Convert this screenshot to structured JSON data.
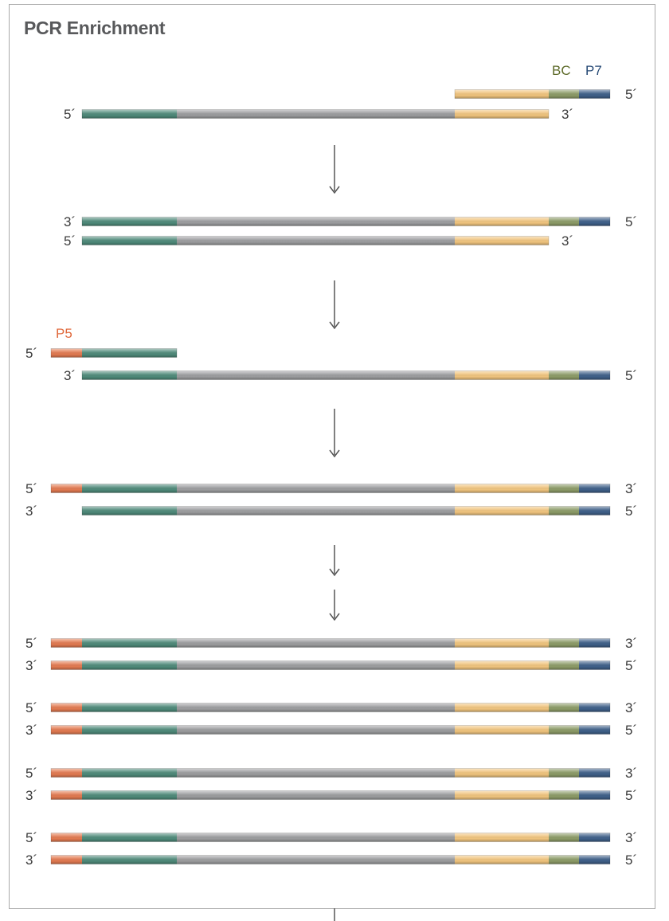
{
  "title": "PCR Enrichment",
  "labels": {
    "bc": "BC",
    "p7": "P7",
    "p5": "P5",
    "five": "5´",
    "three": "3´"
  },
  "colors": {
    "p5": "#e27a51",
    "insert_end": "#4f8a7a",
    "insert": "#9c9d9f",
    "adapter": "#f0c47e",
    "bc": "#8c9b67",
    "p7": "#3f6089",
    "bc_text": "#5e6b2a",
    "p7_text": "#274a76",
    "p5_text": "#e0693c",
    "arrow": "#555555"
  },
  "segment_order": [
    "p5",
    "insert_end",
    "insert",
    "adapter",
    "bc",
    "p7"
  ],
  "rows": [
    {
      "segments": [
        "adapter",
        "bc",
        "p7"
      ],
      "left_label": "",
      "right_label": "5´"
    },
    {
      "segments": [
        "insert_end",
        "insert",
        "adapter"
      ],
      "left_label": "5´",
      "right_label": "3´"
    },
    {
      "segments": [
        "insert_end",
        "insert",
        "adapter",
        "bc",
        "p7"
      ],
      "left_label": "3´",
      "right_label": "5´"
    },
    {
      "segments": [
        "insert_end",
        "insert",
        "adapter"
      ],
      "left_label": "5´",
      "right_label": "3´"
    },
    {
      "segments": [
        "p5",
        "insert_end"
      ],
      "left_label": "5´",
      "right_label": ""
    },
    {
      "segments": [
        "insert_end",
        "insert",
        "adapter",
        "bc",
        "p7"
      ],
      "left_label": "3´",
      "right_label": "5´"
    },
    {
      "segments": [
        "p5",
        "insert_end",
        "insert",
        "adapter",
        "bc",
        "p7"
      ],
      "left_label": "5´",
      "right_label": "3´"
    },
    {
      "segments": [
        "insert_end",
        "insert",
        "adapter",
        "bc",
        "p7"
      ],
      "left_label": "3´",
      "right_label": "5´"
    },
    {
      "segments": [
        "p5",
        "insert_end",
        "insert",
        "adapter",
        "bc",
        "p7"
      ],
      "left_label": "5´",
      "right_label": "3´"
    },
    {
      "segments": [
        "p5",
        "insert_end",
        "insert",
        "adapter",
        "bc",
        "p7"
      ],
      "left_label": "3´",
      "right_label": "5´"
    },
    {
      "segments": [
        "p5",
        "insert_end",
        "insert",
        "adapter",
        "bc",
        "p7"
      ],
      "left_label": "5´",
      "right_label": "3´"
    },
    {
      "segments": [
        "p5",
        "insert_end",
        "insert",
        "adapter",
        "bc",
        "p7"
      ],
      "left_label": "3´",
      "right_label": "5´"
    },
    {
      "segments": [
        "p5",
        "insert_end",
        "insert",
        "adapter",
        "bc",
        "p7"
      ],
      "left_label": "5´",
      "right_label": "3´"
    },
    {
      "segments": [
        "p5",
        "insert_end",
        "insert",
        "adapter",
        "bc",
        "p7"
      ],
      "left_label": "3´",
      "right_label": "5´"
    },
    {
      "segments": [
        "p5",
        "insert_end",
        "insert",
        "adapter",
        "bc",
        "p7"
      ],
      "left_label": "5´",
      "right_label": "3´"
    },
    {
      "segments": [
        "p5",
        "insert_end",
        "insert",
        "adapter",
        "bc",
        "p7"
      ],
      "left_label": "3´",
      "right_label": "5´"
    }
  ]
}
